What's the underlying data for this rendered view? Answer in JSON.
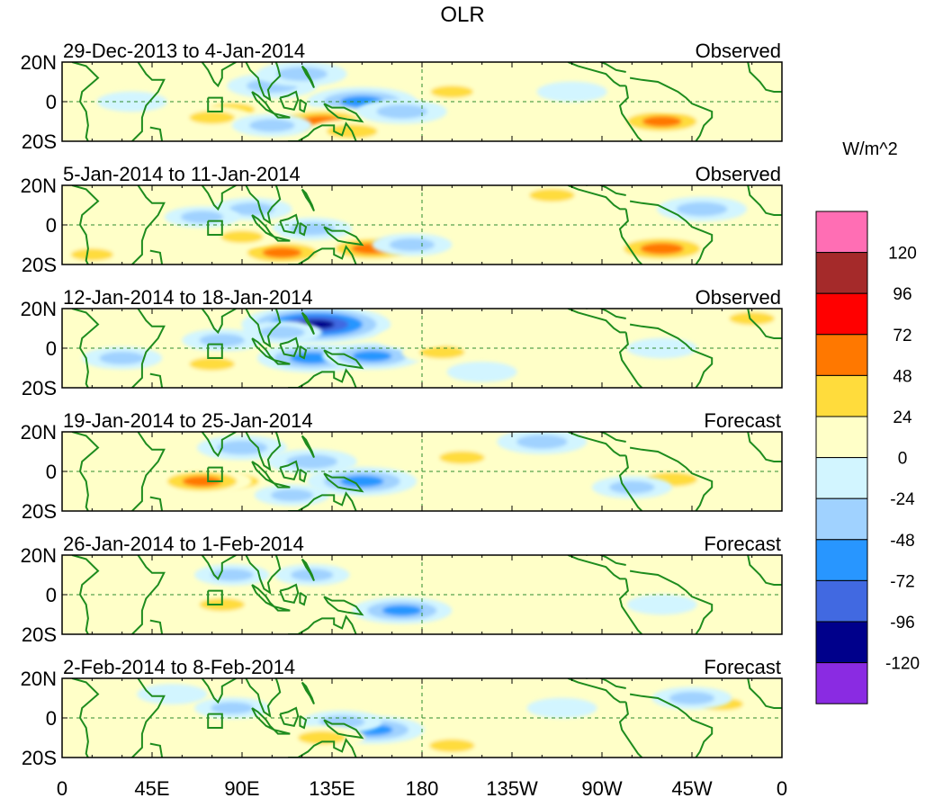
{
  "chart_data": {
    "type": "heatmap",
    "title": "OLR",
    "units": "W/m^2",
    "lat_labels": [
      "20N",
      "0",
      "20S"
    ],
    "lon_labels": [
      "0",
      "45E",
      "90E",
      "135E",
      "180",
      "135W",
      "90W",
      "45W",
      "0"
    ],
    "lat_range": [
      -20,
      20
    ],
    "lon_range": [
      0,
      360
    ],
    "colorbar": {
      "labels": [
        "120",
        "96",
        "72",
        "48",
        "24",
        "0",
        "-24",
        "-48",
        "-72",
        "-96",
        "-120"
      ],
      "colors": [
        "#ff6eb4",
        "#a52a2a",
        "#ff0000",
        "#ff7800",
        "#ffdc3c",
        "#ffffc8",
        "#d2f5ff",
        "#a0d2ff",
        "#2896ff",
        "#4169e1",
        "#00008b",
        "#8a2be2"
      ]
    },
    "panels": [
      {
        "period": "29-Dec-2013 to 4-Jan-2014",
        "type": "Observed"
      },
      {
        "period": "5-Jan-2014 to 11-Jan-2014",
        "type": "Observed"
      },
      {
        "period": "12-Jan-2014 to 18-Jan-2014",
        "type": "Observed"
      },
      {
        "period": "19-Jan-2014 to 25-Jan-2014",
        "type": "Forecast"
      },
      {
        "period": "26-Jan-2014 to 1-Feb-2014",
        "type": "Forecast"
      },
      {
        "period": "2-Feb-2014 to 8-Feb-2014",
        "type": "Forecast"
      }
    ],
    "anomalies": [
      [
        {
          "lon": 85,
          "lat": -4,
          "v": 30
        },
        {
          "lon": 75,
          "lat": -8,
          "v": 30
        },
        {
          "lon": 105,
          "lat": 8,
          "v": -40
        },
        {
          "lon": 120,
          "lat": 14,
          "v": -40
        },
        {
          "lon": 150,
          "lat": 0,
          "v": -60
        },
        {
          "lon": 130,
          "lat": -10,
          "v": 60
        },
        {
          "lon": 145,
          "lat": -15,
          "v": 40
        },
        {
          "lon": 105,
          "lat": -12,
          "v": -30
        },
        {
          "lon": 170,
          "lat": -5,
          "v": -40
        },
        {
          "lon": 195,
          "lat": 5,
          "v": 25
        },
        {
          "lon": 300,
          "lat": -10,
          "v": 50
        },
        {
          "lon": 305,
          "lat": 0,
          "v": 20
        },
        {
          "lon": 255,
          "lat": 5,
          "v": -20
        },
        {
          "lon": 35,
          "lat": 0,
          "v": -20
        }
      ],
      [
        {
          "lon": 110,
          "lat": -14,
          "v": 50
        },
        {
          "lon": 155,
          "lat": -12,
          "v": 55
        },
        {
          "lon": 125,
          "lat": -2,
          "v": -30
        },
        {
          "lon": 95,
          "lat": 8,
          "v": -30
        },
        {
          "lon": 300,
          "lat": -12,
          "v": 60
        },
        {
          "lon": 320,
          "lat": 8,
          "v": -40
        },
        {
          "lon": 90,
          "lat": -6,
          "v": 25
        },
        {
          "lon": 175,
          "lat": -10,
          "v": -30
        },
        {
          "lon": 245,
          "lat": 15,
          "v": 30
        },
        {
          "lon": 15,
          "lat": -15,
          "v": 25
        },
        {
          "lon": 70,
          "lat": 4,
          "v": -25
        }
      ],
      [
        {
          "lon": 127,
          "lat": 12,
          "v": -100
        },
        {
          "lon": 125,
          "lat": -5,
          "v": -60
        },
        {
          "lon": 155,
          "lat": -4,
          "v": -50
        },
        {
          "lon": 80,
          "lat": 4,
          "v": -30
        },
        {
          "lon": 110,
          "lat": 8,
          "v": -30
        },
        {
          "lon": 75,
          "lat": -8,
          "v": 30
        },
        {
          "lon": 190,
          "lat": -2,
          "v": 30
        },
        {
          "lon": 175,
          "lat": 5,
          "v": 20
        },
        {
          "lon": 30,
          "lat": -5,
          "v": -30
        },
        {
          "lon": 345,
          "lat": 15,
          "v": 30
        },
        {
          "lon": 210,
          "lat": -12,
          "v": -20
        },
        {
          "lon": 300,
          "lat": 0,
          "v": -20
        }
      ],
      [
        {
          "lon": 85,
          "lat": -5,
          "v": 45
        },
        {
          "lon": 70,
          "lat": -5,
          "v": 50
        },
        {
          "lon": 150,
          "lat": -5,
          "v": -60
        },
        {
          "lon": 125,
          "lat": 5,
          "v": -40
        },
        {
          "lon": 90,
          "lat": 12,
          "v": -40
        },
        {
          "lon": 200,
          "lat": 7,
          "v": 30
        },
        {
          "lon": 305,
          "lat": -4,
          "v": 40
        },
        {
          "lon": 285,
          "lat": -8,
          "v": -30
        },
        {
          "lon": 240,
          "lat": 15,
          "v": -40
        },
        {
          "lon": 115,
          "lat": -12,
          "v": -25
        },
        {
          "lon": 30,
          "lat": -15,
          "v": 20
        }
      ],
      [
        {
          "lon": 170,
          "lat": -8,
          "v": -50
        },
        {
          "lon": 80,
          "lat": -5,
          "v": 30
        },
        {
          "lon": 85,
          "lat": 10,
          "v": -25
        },
        {
          "lon": 125,
          "lat": 10,
          "v": -25
        },
        {
          "lon": 240,
          "lat": 5,
          "v": 20
        },
        {
          "lon": 300,
          "lat": -5,
          "v": -20
        },
        {
          "lon": 45,
          "lat": -8,
          "v": 20
        },
        {
          "lon": 205,
          "lat": 8,
          "v": 15
        }
      ],
      [
        {
          "lon": 155,
          "lat": -6,
          "v": -55
        },
        {
          "lon": 140,
          "lat": -2,
          "v": -30
        },
        {
          "lon": 130,
          "lat": -10,
          "v": 35
        },
        {
          "lon": 85,
          "lat": 5,
          "v": -25
        },
        {
          "lon": 195,
          "lat": -14,
          "v": 30
        },
        {
          "lon": 330,
          "lat": 7,
          "v": 25
        },
        {
          "lon": 315,
          "lat": 10,
          "v": -30
        },
        {
          "lon": 250,
          "lat": 5,
          "v": -20
        },
        {
          "lon": 55,
          "lat": 12,
          "v": -20
        }
      ]
    ]
  }
}
